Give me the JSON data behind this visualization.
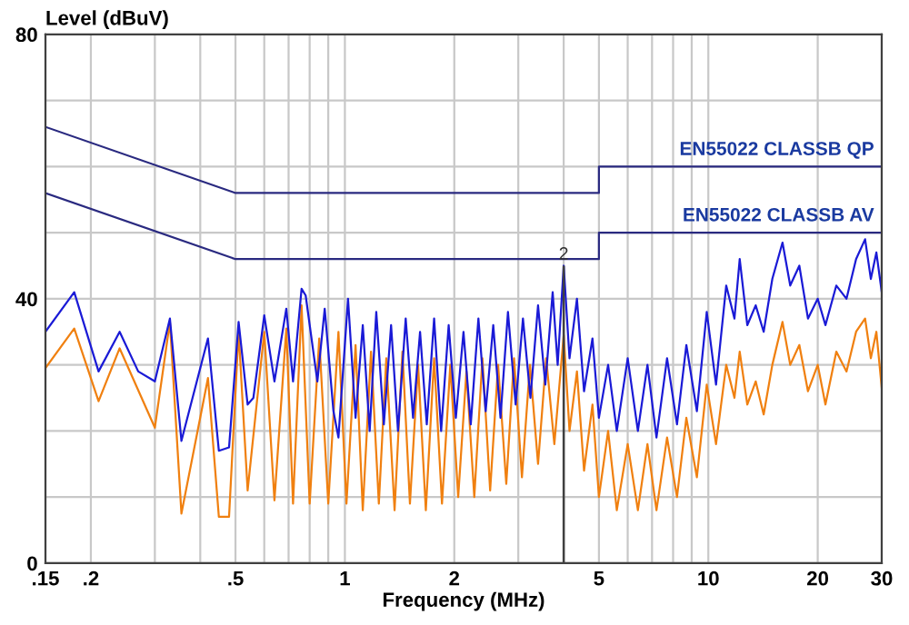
{
  "chart_data": {
    "type": "line",
    "xlabel": "Frequency (MHz)",
    "ylabel": "Level (dBuV)",
    "log": "x",
    "xlim": [
      0.15,
      30
    ],
    "ylim": [
      0,
      80
    ],
    "xticks": [
      {
        "value": 0.15,
        "label": ".15"
      },
      {
        "value": 0.2,
        "label": ".2"
      },
      {
        "value": 0.3,
        "label": null
      },
      {
        "value": 0.4,
        "label": null
      },
      {
        "value": 0.5,
        "label": ".5"
      },
      {
        "value": 0.6,
        "label": null
      },
      {
        "value": 0.7,
        "label": null
      },
      {
        "value": 0.8,
        "label": null
      },
      {
        "value": 0.9,
        "label": null
      },
      1,
      2,
      {
        "value": 3,
        "label": null
      },
      {
        "value": 4,
        "label": null
      },
      5,
      {
        "value": 6,
        "label": null
      },
      {
        "value": 7,
        "label": null
      },
      {
        "value": 8,
        "label": null
      },
      {
        "value": 9,
        "label": null
      },
      10,
      20,
      30
    ],
    "yticks": [
      0,
      {
        "value": 10,
        "label": null
      },
      {
        "value": 20,
        "label": null
      },
      {
        "value": 30,
        "label": null
      },
      40,
      {
        "value": 50,
        "label": null
      },
      {
        "value": 60,
        "label": null
      },
      {
        "value": 70,
        "label": null
      },
      80
    ],
    "grid": true,
    "marker": "none",
    "line_style": "solid",
    "annotations": [
      {
        "text": "2",
        "x": 4.0,
        "y": 45
      }
    ],
    "series": [
      {
        "color": "#f08010",
        "x": [
          0.15,
          0.18,
          0.21,
          0.24,
          0.3,
          0.33,
          0.355,
          0.42,
          0.45,
          0.48,
          0.51,
          0.54,
          0.6,
          0.64,
          0.69,
          0.72,
          0.76,
          0.8,
          0.85,
          0.9,
          0.96,
          1.01,
          1.07,
          1.12,
          1.18,
          1.24,
          1.3,
          1.37,
          1.44,
          1.51,
          1.59,
          1.67,
          1.76,
          1.85,
          1.95,
          2.05,
          2.16,
          2.27,
          2.39,
          2.51,
          2.64,
          2.78,
          2.92,
          3.07,
          3.23,
          3.4,
          3.58,
          3.77,
          4.0,
          4.15,
          4.35,
          4.55,
          4.8,
          5.0,
          5.3,
          5.6,
          6.0,
          6.4,
          6.8,
          7.2,
          7.7,
          8.2,
          8.7,
          9.3,
          9.9,
          10.5,
          11.2,
          11.8,
          12.2,
          12.8,
          13.5,
          14.2,
          15,
          16,
          16.8,
          17.8,
          18.8,
          20,
          21,
          22.5,
          24,
          25.5,
          27,
          28,
          29,
          30
        ],
        "values": [
          29.5,
          35.5,
          24.5,
          32.5,
          20.5,
          36.5,
          7.5,
          28,
          7,
          7,
          35,
          11,
          35,
          9.5,
          35.5,
          9,
          39,
          9,
          34,
          9,
          35,
          9,
          33,
          8,
          32,
          9,
          31,
          8,
          32,
          9,
          30,
          8,
          31,
          9,
          30,
          10,
          29,
          10,
          31,
          11,
          30,
          12,
          31,
          13,
          30,
          15,
          31,
          18,
          34.5,
          20,
          29,
          14,
          24,
          10,
          20,
          8,
          18,
          8,
          18,
          8,
          19,
          10,
          22,
          13,
          27,
          18,
          30,
          25,
          32,
          24,
          27.5,
          22.5,
          30,
          36.5,
          30,
          33,
          26,
          30,
          24,
          32,
          29,
          35,
          37,
          31,
          35,
          26.5
        ]
      },
      {
        "color": "#1a1ad6",
        "x": [
          0.15,
          0.18,
          0.21,
          0.24,
          0.27,
          0.3,
          0.33,
          0.355,
          0.42,
          0.45,
          0.48,
          0.51,
          0.54,
          0.56,
          0.6,
          0.64,
          0.69,
          0.72,
          0.76,
          0.78,
          0.84,
          0.88,
          0.93,
          0.96,
          1.02,
          1.07,
          1.12,
          1.17,
          1.22,
          1.28,
          1.34,
          1.4,
          1.47,
          1.54,
          1.61,
          1.68,
          1.76,
          1.84,
          1.93,
          2.02,
          2.12,
          2.22,
          2.33,
          2.44,
          2.56,
          2.68,
          2.81,
          2.95,
          3.09,
          3.24,
          3.4,
          3.56,
          3.73,
          3.85,
          4.0,
          4.15,
          4.35,
          4.55,
          4.8,
          5.0,
          5.3,
          5.6,
          6.0,
          6.4,
          6.8,
          7.2,
          7.7,
          8.2,
          8.7,
          9.3,
          9.9,
          10.5,
          11.2,
          11.8,
          12.2,
          12.8,
          13.5,
          14.2,
          15,
          16,
          16.8,
          17.8,
          18.8,
          20,
          21,
          22.5,
          24,
          25.5,
          27,
          28,
          29,
          30
        ],
        "values": [
          35,
          41,
          29,
          35,
          29,
          27.5,
          37,
          18.5,
          34,
          17,
          17.5,
          36.5,
          24,
          25,
          37.5,
          27.5,
          38.5,
          27.5,
          41.5,
          40.5,
          27.5,
          38.5,
          23,
          19,
          40,
          22,
          36,
          20,
          38,
          21,
          36,
          20,
          37,
          22,
          35,
          21,
          37,
          20,
          36,
          22,
          35,
          21,
          37,
          23,
          36,
          22,
          38,
          24,
          37,
          25,
          39,
          27,
          41,
          30,
          45,
          31,
          40,
          26,
          34,
          22,
          30,
          20,
          31,
          20,
          30,
          19,
          31,
          21,
          33,
          23,
          38,
          27,
          42,
          37,
          46,
          36,
          39,
          35,
          43,
          48.5,
          42,
          45,
          37,
          40,
          36,
          42,
          40,
          46,
          49,
          43,
          47,
          41
        ]
      },
      {
        "name": "EN55022 CLASSB QP",
        "color": "#2a2a80",
        "x": [
          0.15,
          0.5,
          5,
          5,
          30
        ],
        "values": [
          66,
          56,
          56,
          60,
          60
        ]
      },
      {
        "name": "EN55022 CLASSB AV",
        "color": "#2a2a80",
        "x": [
          0.15,
          0.5,
          5,
          5,
          30
        ],
        "values": [
          56,
          46,
          46,
          50,
          50
        ]
      }
    ]
  }
}
